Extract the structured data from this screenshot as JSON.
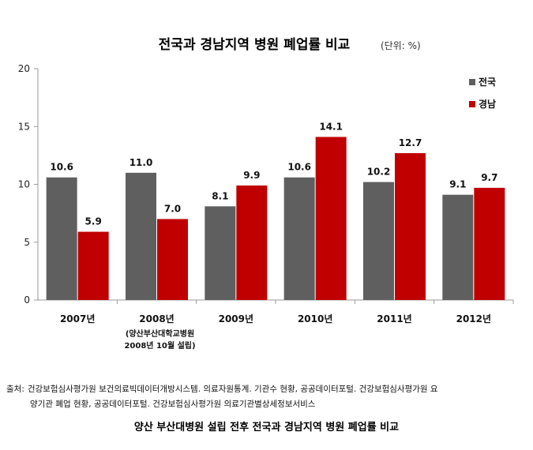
{
  "chart_data": {
    "type": "bar",
    "title": "전국과 경남지역 병원 폐업률 비교",
    "unit_label": "(단위: %)",
    "categories": [
      "2007년",
      "2008년",
      "2009년",
      "2010년",
      "2011년",
      "2012년"
    ],
    "category_notes": [
      "",
      "(양산부산대학교병원\n2008년 10월 설립)",
      "",
      "",
      "",
      ""
    ],
    "series": [
      {
        "name": "전국",
        "color": "#5f5f5f",
        "values": [
          10.6,
          11.0,
          8.1,
          10.6,
          10.2,
          9.1
        ]
      },
      {
        "name": "경남",
        "color": "#c00000",
        "values": [
          5.9,
          7.0,
          9.9,
          14.1,
          12.7,
          9.7
        ]
      }
    ],
    "ylim": [
      0,
      20
    ],
    "yticks": [
      0,
      5,
      10,
      15,
      20
    ],
    "grid": false,
    "legend_position": "top-right",
    "data_labels": true
  },
  "source": {
    "label": "출처:",
    "line1": "건강보험심사평가원 보건의료빅데이터개방시스템. 의료자원통계. 기관수 현황, 공공데이터포털. 건강보험심사평가원 요",
    "line2": "양기관 폐업 현황, 공공데이터포털. 건강보험심사평가원 의료기관별상세정보서비스"
  },
  "caption": "양산 부산대병원 설립 전후 전국과 경남지역 병원 폐업률 비교"
}
